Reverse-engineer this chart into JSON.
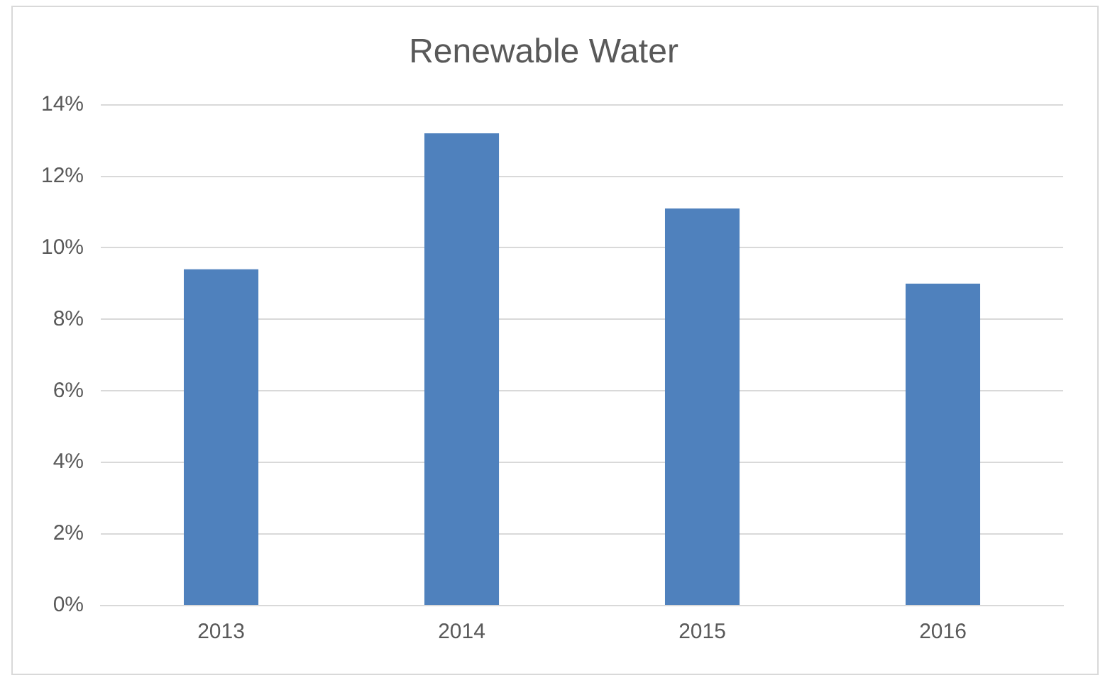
{
  "chart_data": {
    "type": "bar",
    "title": "Renewable Water",
    "categories": [
      "2013",
      "2014",
      "2015",
      "2016"
    ],
    "values": [
      9.4,
      13.2,
      11.1,
      9.0
    ],
    "color": "#4f81bd",
    "ylim": [
      0,
      14
    ],
    "yticks": [
      {
        "value": 0,
        "label": "0%"
      },
      {
        "value": 2,
        "label": "2%"
      },
      {
        "value": 4,
        "label": "4%"
      },
      {
        "value": 6,
        "label": "6%"
      },
      {
        "value": 8,
        "label": "8%"
      },
      {
        "value": 10,
        "label": "10%"
      },
      {
        "value": 12,
        "label": "12%"
      },
      {
        "value": 14,
        "label": "14%"
      }
    ],
    "grid": "y",
    "legend": false
  }
}
